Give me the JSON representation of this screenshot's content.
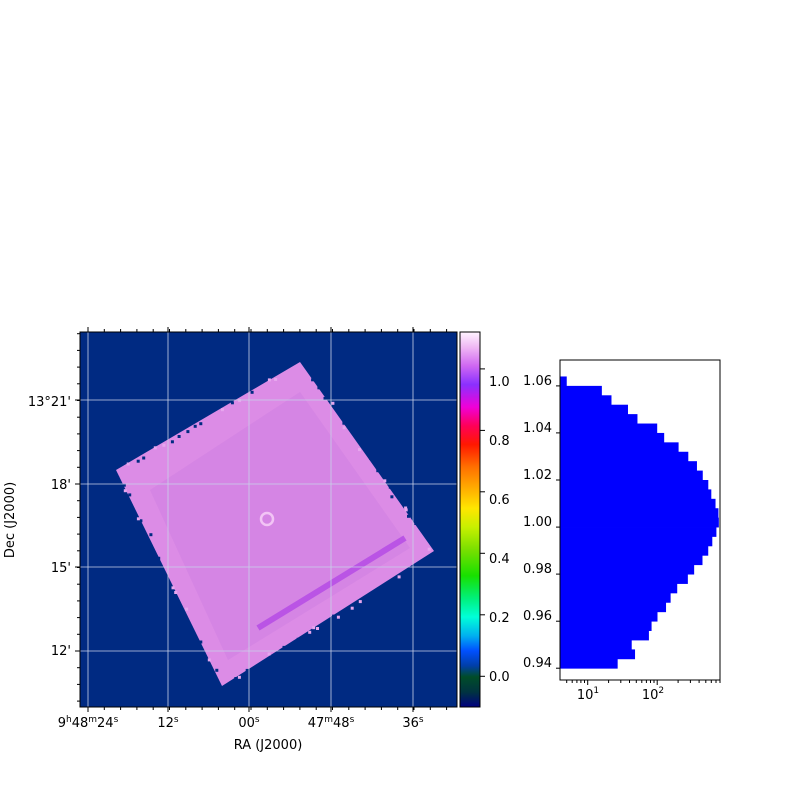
{
  "chart_data": [
    {
      "type": "heatmap",
      "title": "",
      "xlabel": "RA (J2000)",
      "ylabel": "Dec (J2000)",
      "x_ticks": [
        {
          "h": "9",
          "hs": "h",
          "m": "48",
          "ms": "m",
          "s": "24",
          "ss": "s"
        },
        {
          "s": "12",
          "ss": "s"
        },
        {
          "s": "00",
          "ss": "s"
        },
        {
          "m": "47",
          "ms": "m",
          "s": "48",
          "ss": "s"
        },
        {
          "s": "36",
          "ss": "s"
        }
      ],
      "y_ticks": [
        "12'",
        "15'",
        "18'",
        "13°21'"
      ],
      "grid": true,
      "background_value": -0.1,
      "typical_value": 1.0,
      "colorbar": {
        "colormap": "gist_ncar",
        "vmin": -0.1,
        "vmax": 1.12,
        "ticks": [
          "0.0",
          "0.2",
          "0.4",
          "0.6",
          "0.8",
          "1.0"
        ]
      },
      "colors": {
        "background": "#002a82",
        "field": "#dc8ce6",
        "grid": "#c8d2e8"
      }
    },
    {
      "type": "bar",
      "orientation": "horizontal",
      "xscale": "log",
      "xlim": [
        4,
        800
      ],
      "ylim": [
        0.935,
        1.071
      ],
      "bin_width": 0.004,
      "x_tick_labels": [
        {
          "base": "10",
          "exp": "1",
          "value": 10
        },
        {
          "base": "10",
          "exp": "2",
          "value": 100
        }
      ],
      "y_tick_labels": [
        "0.94",
        "0.96",
        "0.98",
        "1.00",
        "1.02",
        "1.04",
        "1.06"
      ],
      "bar_color": "#0000ff",
      "bins": [
        {
          "y0": 0.94,
          "count": 27
        },
        {
          "y0": 0.944,
          "count": 48
        },
        {
          "y0": 0.948,
          "count": 43
        },
        {
          "y0": 0.952,
          "count": 76
        },
        {
          "y0": 0.956,
          "count": 83
        },
        {
          "y0": 0.96,
          "count": 101
        },
        {
          "y0": 0.964,
          "count": 134
        },
        {
          "y0": 0.968,
          "count": 156
        },
        {
          "y0": 0.972,
          "count": 194
        },
        {
          "y0": 0.976,
          "count": 276
        },
        {
          "y0": 0.98,
          "count": 340
        },
        {
          "y0": 0.984,
          "count": 448
        },
        {
          "y0": 0.988,
          "count": 542
        },
        {
          "y0": 0.992,
          "count": 620
        },
        {
          "y0": 0.996,
          "count": 710
        },
        {
          "y0": 1.0,
          "count": 770
        },
        {
          "y0": 1.004,
          "count": 760
        },
        {
          "y0": 1.008,
          "count": 690
        },
        {
          "y0": 1.012,
          "count": 600
        },
        {
          "y0": 1.016,
          "count": 543
        },
        {
          "y0": 1.02,
          "count": 452
        },
        {
          "y0": 1.024,
          "count": 373
        },
        {
          "y0": 1.028,
          "count": 280
        },
        {
          "y0": 1.032,
          "count": 203
        },
        {
          "y0": 1.036,
          "count": 126
        },
        {
          "y0": 1.04,
          "count": 100
        },
        {
          "y0": 1.044,
          "count": 52
        },
        {
          "y0": 1.048,
          "count": 38
        },
        {
          "y0": 1.052,
          "count": 22
        },
        {
          "y0": 1.056,
          "count": 16
        },
        {
          "y0": 1.06,
          "count": 5
        },
        {
          "y0": 1.064,
          "count": 4
        }
      ]
    }
  ]
}
